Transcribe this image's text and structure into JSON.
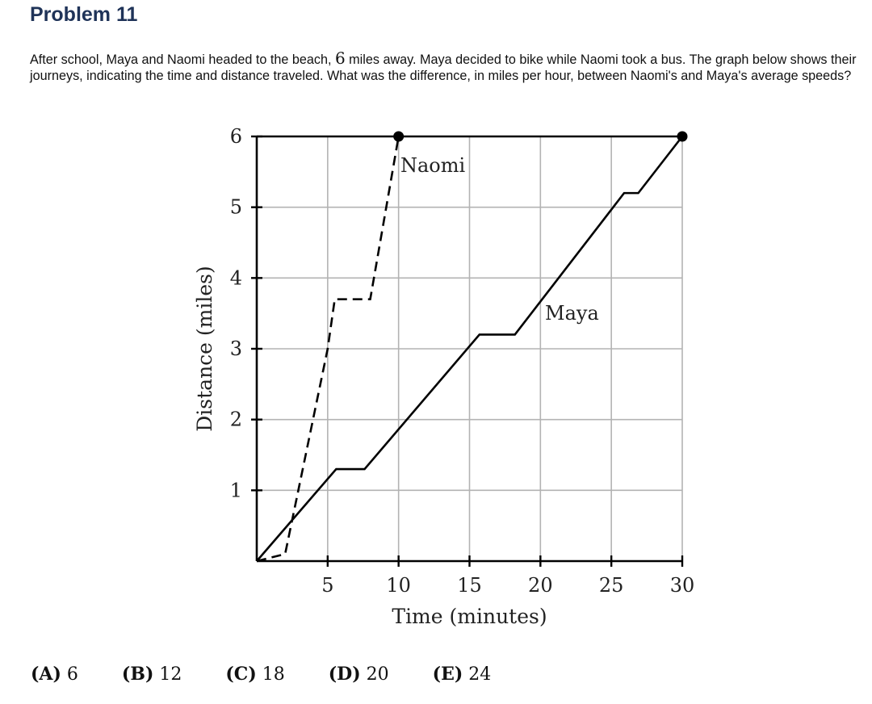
{
  "problem": {
    "title": "Problem 11",
    "question_part1": "After school, Maya and Naomi headed to the beach, ",
    "question_number": "6",
    "question_part2": " miles away. Maya decided to bike while Naomi took a bus. The graph below shows their journeys, indicating the time and distance traveled. What was the difference, in miles per hour, between Naomi's and Maya's average speeds?"
  },
  "choices": [
    {
      "letter": "A",
      "value": "6"
    },
    {
      "letter": "B",
      "value": "12"
    },
    {
      "letter": "C",
      "value": "18"
    },
    {
      "letter": "D",
      "value": "20"
    },
    {
      "letter": "E",
      "value": "24"
    }
  ],
  "chart_data": {
    "type": "line",
    "xlabel": "Time (minutes)",
    "ylabel": "Distance (miles)",
    "xlim": [
      0,
      30
    ],
    "ylim": [
      0,
      6
    ],
    "xticks": [
      5,
      10,
      15,
      20,
      25,
      30
    ],
    "yticks": [
      1,
      2,
      3,
      4,
      5,
      6
    ],
    "grid": true,
    "series": [
      {
        "name": "Naomi",
        "style": "dashed",
        "x": [
          0,
          2,
          5,
          5.5,
          8,
          10
        ],
        "y": [
          0,
          0.1,
          3.0,
          3.7,
          3.7,
          6
        ],
        "endpoint": [
          10,
          6
        ]
      },
      {
        "name": "Maya",
        "style": "solid",
        "x": [
          0,
          5.6,
          7.6,
          15.7,
          18.2,
          25.9,
          26.9,
          30
        ],
        "y": [
          0,
          1.3,
          1.3,
          3.2,
          3.2,
          5.2,
          5.2,
          6
        ],
        "endpoint": [
          30,
          6
        ]
      }
    ]
  }
}
